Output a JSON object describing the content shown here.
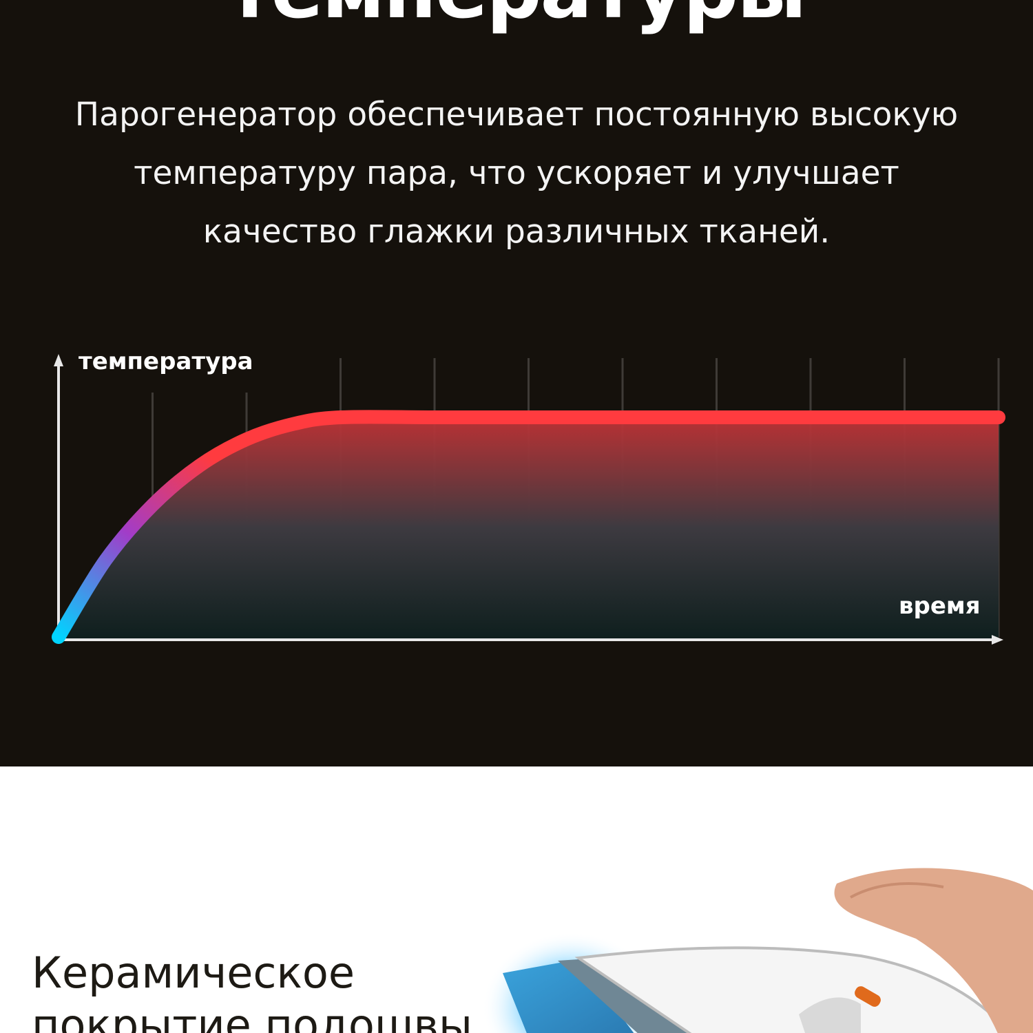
{
  "header": {
    "title": "температуры"
  },
  "description": {
    "lines": [
      "Парогенератор обеспечивает постоянную высокую",
      "температуру пара, что ускоряет и улучшает",
      "качество глажки различных тканей."
    ]
  },
  "chart_data": {
    "type": "line",
    "title": "",
    "xlabel": "время",
    "ylabel": "температура",
    "grid": true,
    "series": [
      {
        "x": [
          0,
          0.5,
          1,
          1.5,
          2,
          2.5,
          3,
          4,
          5,
          6,
          7,
          8,
          9,
          10
        ],
        "values": [
          0,
          0.35,
          0.6,
          0.78,
          0.9,
          0.97,
          1,
          1,
          1,
          1,
          1,
          1,
          1,
          1
        ]
      }
    ],
    "colors": {
      "start": "#00d4ff",
      "mid": "#a23cc8",
      "end": "#ff3b3f"
    }
  },
  "section2": {
    "title_lines": [
      "Керамическое",
      "покрытие подошвы"
    ]
  },
  "colors": {
    "background": "#15110c",
    "text": "#ffffff"
  }
}
